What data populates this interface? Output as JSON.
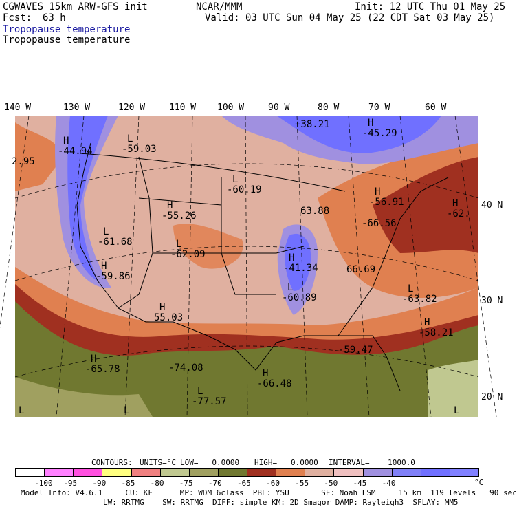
{
  "header": {
    "model": "CGWAVES 15km ARW-GFS init",
    "fcst_label": "Fcst:",
    "fcst_value": "63 h",
    "org": "NCAR/MMM",
    "init": "Init: 12 UTC Thu 01 May 25",
    "valid": "Valid: 03 UTC Sun 04 May 25 (22 CDT Sat 03 May 25)",
    "title_line1": "Tropopause temperature",
    "title_line2": "Tropopause temperature"
  },
  "map": {
    "longitude_labels": [
      "140 W",
      "130 W",
      "120 W",
      "110 W",
      "100 W",
      "90 W",
      "80 W",
      "70 W",
      "60 W"
    ],
    "latitude_labels": [
      "40 N",
      "30 N",
      "20 N"
    ],
    "annotations": [
      {
        "label": "H",
        "value": "-44.94"
      },
      {
        "label": "L",
        "value": "-59.03"
      },
      {
        "label": "",
        "value": "2.95"
      },
      {
        "label": "",
        "value": "+38.21"
      },
      {
        "label": "H",
        "value": "-45.29"
      },
      {
        "label": "L",
        "value": "-60.19"
      },
      {
        "label": "H",
        "value": "-55.26"
      },
      {
        "label": "L",
        "value": "-61.68"
      },
      {
        "label": "L",
        "value": "-62.09"
      },
      {
        "label": "H",
        "value": "-59.86"
      },
      {
        "label": "",
        "value": "63.88"
      },
      {
        "label": "H",
        "value": "-56.91"
      },
      {
        "label": "H",
        "value": "-62."
      },
      {
        "label": "",
        "value": "-66.56"
      },
      {
        "label": "H",
        "value": "-41.34"
      },
      {
        "label": "",
        "value": "66.69"
      },
      {
        "label": "L",
        "value": "-60.89"
      },
      {
        "label": "L",
        "value": "-63.82"
      },
      {
        "label": "H",
        "value": "55.03"
      },
      {
        "label": "H",
        "value": "-58.21"
      },
      {
        "label": "",
        "value": "-59.47"
      },
      {
        "label": "H",
        "value": "-65.78"
      },
      {
        "label": "",
        "value": "-74.08"
      },
      {
        "label": "H",
        "value": "-66.48"
      },
      {
        "label": "L",
        "value": "-77.57"
      },
      {
        "label": "L",
        "value": ""
      },
      {
        "label": "L",
        "value": ""
      },
      {
        "label": "L",
        "value": ""
      }
    ]
  },
  "contours": {
    "heading": "CONTOURS:",
    "units": "UNITS=°C",
    "low": "LOW=   0.0000",
    "high": "HIGH=   0.0000",
    "interval": "INTERVAL=    1000.0"
  },
  "colorbar": {
    "colors": [
      "#ffffff",
      "#ff80ff",
      "#ff50e0",
      "#ffff80",
      "#f08080",
      "#c0c890",
      "#a0a060",
      "#707830",
      "#a03020",
      "#e08050",
      "#e0b0a0",
      "#f0c0c0",
      "#a090e0",
      "#8080f8",
      "#7070ff",
      "#8080ff"
    ],
    "labels": [
      "-100",
      "-95",
      "-90",
      "-85",
      "-80",
      "-75",
      "-70",
      "-65",
      "-60",
      "-55",
      "-50",
      "-45",
      "-40"
    ],
    "unit": "°C"
  },
  "footer": {
    "line1": "Model Info: V4.6.1     CU: KF      MP: WDM 6class  PBL: YSU       SF: Noah LSM     15 km  119 levels   90 sec",
    "line2": "LW: RRTMG    SW: RRTMG  DIFF: simple KM: 2D Smagor DAMP: Rayleigh3  SFLAY: MM5"
  }
}
